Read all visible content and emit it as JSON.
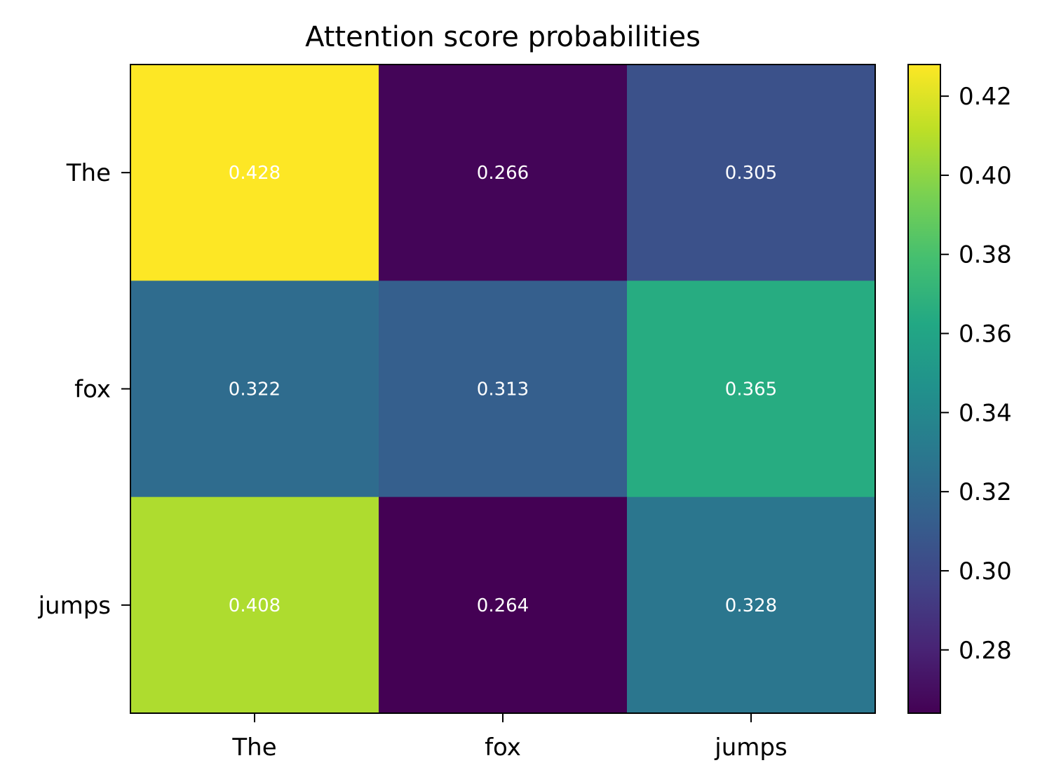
{
  "chart_data": {
    "type": "heatmap",
    "title": "Attention score probabilities",
    "x_categories": [
      "The",
      "fox",
      "jumps"
    ],
    "y_categories": [
      "The",
      "fox",
      "jumps"
    ],
    "values": [
      [
        0.428,
        0.266,
        0.305
      ],
      [
        0.322,
        0.313,
        0.365
      ],
      [
        0.408,
        0.264,
        0.328
      ]
    ],
    "cell_labels": [
      [
        "0.428",
        "0.266",
        "0.305"
      ],
      [
        "0.322",
        "0.313",
        "0.365"
      ],
      [
        "0.408",
        "0.264",
        "0.328"
      ]
    ],
    "colormap": "viridis",
    "colorbar": {
      "range": [
        0.264,
        0.428
      ],
      "ticks": [
        0.28,
        0.3,
        0.32,
        0.34,
        0.36,
        0.38,
        0.4,
        0.42
      ],
      "tick_labels": [
        "0.28",
        "0.30",
        "0.32",
        "0.34",
        "0.36",
        "0.38",
        "0.40",
        "0.42"
      ]
    },
    "xlabel": "",
    "ylabel": ""
  }
}
